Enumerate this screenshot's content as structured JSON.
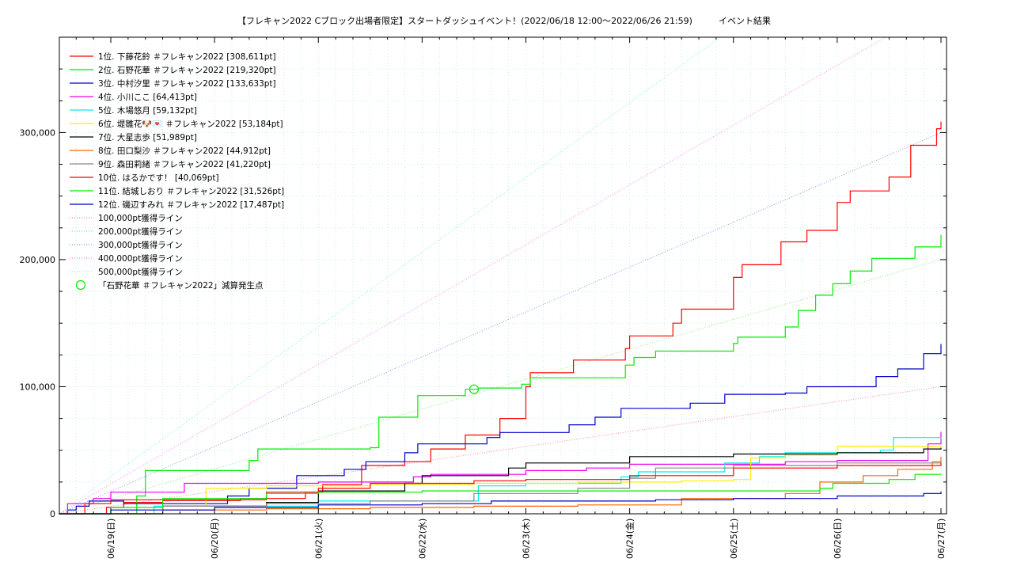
{
  "chart_data": {
    "type": "line",
    "title": "【フレキャン2022 Cブロック出場者限定】スタートダッシュイベント！(2022/06/18 12:00〜2022/06/26 21:59)　　　イベント結果",
    "xlabel": "",
    "ylabel": "",
    "x_range": [
      "2022/06/18 12:00",
      "2022/06/27 01:00"
    ],
    "ylim": [
      0,
      375000
    ],
    "grid": true,
    "legend_position": "top-left",
    "x_tick_labels": [
      "06/19(日)",
      "06/20(月)",
      "06/21(火)",
      "06/22(水)",
      "06/23(木)",
      "06/24(金)",
      "06/25(土)",
      "06/26(日)",
      "06/27(月)"
    ],
    "y_tick_labels": [
      "0",
      "100,000",
      "200,000",
      "300,000"
    ],
    "series": [
      {
        "name": "1位. 下藤花鈴 ＃フレキャン2022 [308,611pt]",
        "color": "#ff0000",
        "style": "solid",
        "points": [
          [
            "06/18 15:00",
            0
          ],
          [
            "06/18 23:00",
            5000
          ],
          [
            "06/19 03:00",
            9000
          ],
          [
            "06/19 12:00",
            10500
          ],
          [
            "06/20 06:00",
            12000
          ],
          [
            "06/20 21:00",
            17000
          ],
          [
            "06/21 01:00",
            23000
          ],
          [
            "06/21 10:00",
            38000
          ],
          [
            "06/21 20:00",
            41000
          ],
          [
            "06/22 02:00",
            51000
          ],
          [
            "06/22 10:00",
            62000
          ],
          [
            "06/22 18:00",
            75000
          ],
          [
            "06/23 00:00",
            100000
          ],
          [
            "06/23 01:00",
            111000
          ],
          [
            "06/23 11:00",
            121000
          ],
          [
            "06/23 23:00",
            130000
          ],
          [
            "06/24 00:00",
            140000
          ],
          [
            "06/24 10:00",
            150000
          ],
          [
            "06/24 12:00",
            161000
          ],
          [
            "06/25 00:00",
            186000
          ],
          [
            "06/25 02:00",
            196000
          ],
          [
            "06/25 11:00",
            214000
          ],
          [
            "06/25 17:00",
            223000
          ],
          [
            "06/26 00:00",
            245000
          ],
          [
            "06/26 03:00",
            254000
          ],
          [
            "06/26 12:00",
            265000
          ],
          [
            "06/26 17:00",
            290000
          ],
          [
            "06/26 23:00",
            303000
          ],
          [
            "06/27 00:00",
            308611
          ]
        ]
      },
      {
        "name": "2位. 石野花華 ＃フレキャン2022 [219,320pt]",
        "color": "#00ee00",
        "style": "solid",
        "points": [
          [
            "06/18 22:00",
            0
          ],
          [
            "06/19 06:00",
            14000
          ],
          [
            "06/19 08:00",
            34000
          ],
          [
            "06/20 08:00",
            42000
          ],
          [
            "06/20 10:00",
            51000
          ],
          [
            "06/21 12:00",
            52000
          ],
          [
            "06/21 14:00",
            76000
          ],
          [
            "06/21 23:00",
            93000
          ],
          [
            "06/22 10:00",
            98000
          ],
          [
            "06/22 13:00",
            99000
          ],
          [
            "06/22 23:00",
            102000
          ],
          [
            "06/23 01:00",
            107000
          ],
          [
            "06/23 23:00",
            117000
          ],
          [
            "06/24 01:00",
            123000
          ],
          [
            "06/24 06:00",
            128000
          ],
          [
            "06/25 00:00",
            134000
          ],
          [
            "06/25 01:00",
            139000
          ],
          [
            "06/25 12:00",
            147000
          ],
          [
            "06/25 15:00",
            160000
          ],
          [
            "06/25 19:00",
            172000
          ],
          [
            "06/25 23:00",
            181000
          ],
          [
            "06/26 03:00",
            191000
          ],
          [
            "06/26 08:00",
            201000
          ],
          [
            "06/26 18:00",
            210000
          ],
          [
            "06/27 00:00",
            219320
          ]
        ]
      },
      {
        "name": "3位. 中村汐里 ＃フレキャン2022 [133,633pt]",
        "color": "#0000cc",
        "style": "solid",
        "points": [
          [
            "06/18 12:30",
            0
          ],
          [
            "06/18 14:00",
            3000
          ],
          [
            "06/18 16:00",
            6000
          ],
          [
            "06/18 19:00",
            10000
          ],
          [
            "06/19 03:00",
            8000
          ],
          [
            "06/20 03:00",
            14000
          ],
          [
            "06/20 08:00",
            20000
          ],
          [
            "06/20 19:00",
            30000
          ],
          [
            "06/21 06:00",
            35000
          ],
          [
            "06/21 11:00",
            41000
          ],
          [
            "06/21 20:00",
            48000
          ],
          [
            "06/21 23:00",
            55000
          ],
          [
            "06/22 15:00",
            60000
          ],
          [
            "06/22 18:00",
            64000
          ],
          [
            "06/23 10:00",
            70000
          ],
          [
            "06/23 16:00",
            76000
          ],
          [
            "06/23 22:00",
            83000
          ],
          [
            "06/24 14:00",
            87000
          ],
          [
            "06/24 22:00",
            94000
          ],
          [
            "06/25 12:00",
            95000
          ],
          [
            "06/25 17:00",
            100000
          ],
          [
            "06/26 09:00",
            108000
          ],
          [
            "06/26 14:00",
            114000
          ],
          [
            "06/26 20:00",
            126000
          ],
          [
            "06/27 00:00",
            133633
          ]
        ]
      },
      {
        "name": "4位. 小川ここ [64,413pt]",
        "color": "#ee00ee",
        "style": "solid",
        "points": [
          [
            "06/18 12:00",
            0
          ],
          [
            "06/18 14:00",
            8000
          ],
          [
            "06/18 20:00",
            12000
          ],
          [
            "06/19 00:00",
            17000
          ],
          [
            "06/19 17:00",
            24000
          ],
          [
            "06/21 00:00",
            25000
          ],
          [
            "06/21 22:00",
            29000
          ],
          [
            "06/22 02:00",
            31000
          ],
          [
            "06/23 00:00",
            34000
          ],
          [
            "06/23 14:00",
            36000
          ],
          [
            "06/24 00:00",
            39000
          ],
          [
            "06/25 12:00",
            41000
          ],
          [
            "06/26 00:00",
            42000
          ],
          [
            "06/26 21:00",
            55000
          ],
          [
            "06/27 00:00",
            64413
          ]
        ]
      },
      {
        "name": "5位. 木場悠月 [59,132pt]",
        "color": "#00eeee",
        "style": "solid",
        "points": [
          [
            "06/18 12:00",
            0
          ],
          [
            "06/19 10:00",
            6000
          ],
          [
            "06/21 00:00",
            10000
          ],
          [
            "06/22 13:00",
            22000
          ],
          [
            "06/23 00:00",
            24000
          ],
          [
            "06/23 22:00",
            29000
          ],
          [
            "06/24 02:00",
            33000
          ],
          [
            "06/24 22:00",
            40000
          ],
          [
            "06/25 06:00",
            45000
          ],
          [
            "06/25 12:00",
            48000
          ],
          [
            "06/26 10:00",
            50000
          ],
          [
            "06/26 13:00",
            60000
          ],
          [
            "06/27 00:00",
            59132
          ]
        ]
      },
      {
        "name": "6位. 堤雛花🐶💌 ＃フレキャン2022 [53,184pt]",
        "color": "#ffee00",
        "style": "solid",
        "points": [
          [
            "06/18 12:00",
            0
          ],
          [
            "06/19 12:00",
            6000
          ],
          [
            "06/19 22:00",
            20000
          ],
          [
            "06/20 12:00",
            22000
          ],
          [
            "06/21 12:00",
            23000
          ],
          [
            "06/22 12:00",
            24000
          ],
          [
            "06/23 12:00",
            25000
          ],
          [
            "06/24 08:00",
            25000
          ],
          [
            "06/24 12:00",
            26000
          ],
          [
            "06/25 00:00",
            27000
          ],
          [
            "06/25 04:00",
            44000
          ],
          [
            "06/25 12:00",
            46000
          ],
          [
            "06/26 00:00",
            53000
          ],
          [
            "06/27 00:00",
            53184
          ]
        ]
      },
      {
        "name": "7位. 大星志歩 [51,989pt]",
        "color": "#000000",
        "style": "solid",
        "points": [
          [
            "06/18 12:00",
            0
          ],
          [
            "06/19 12:00",
            6000
          ],
          [
            "06/20 12:00",
            9000
          ],
          [
            "06/21 00:00",
            18000
          ],
          [
            "06/21 20:00",
            24000
          ],
          [
            "06/22 00:00",
            30000
          ],
          [
            "06/22 20:00",
            36000
          ],
          [
            "06/23 00:00",
            40000
          ],
          [
            "06/24 00:00",
            45000
          ],
          [
            "06/25 00:00",
            47000
          ],
          [
            "06/26 00:00",
            48000
          ],
          [
            "06/26 20:00",
            51000
          ],
          [
            "06/27 00:00",
            51989
          ]
        ]
      },
      {
        "name": "8位. 田口梨沙 ＃フレキャン2022 [44,912pt]",
        "color": "#ff6600",
        "style": "solid",
        "points": [
          [
            "06/18 12:00",
            0
          ],
          [
            "06/19 12:00",
            3000
          ],
          [
            "06/20 12:00",
            4000
          ],
          [
            "06/21 12:00",
            5000
          ],
          [
            "06/22 12:00",
            6000
          ],
          [
            "06/23 12:00",
            7000
          ],
          [
            "06/24 12:00",
            12000
          ],
          [
            "06/25 12:00",
            16000
          ],
          [
            "06/25 20:00",
            25000
          ],
          [
            "06/26 06:00",
            30000
          ],
          [
            "06/26 14:00",
            35000
          ],
          [
            "06/26 22:00",
            41000
          ],
          [
            "06/27 00:00",
            44912
          ]
        ]
      },
      {
        "name": "9位. 森田莉緒 ＃フレキャン2022 [41,220pt]",
        "color": "#888888",
        "style": "solid",
        "points": [
          [
            "06/18 12:00",
            0
          ],
          [
            "06/19 12:00",
            6000
          ],
          [
            "06/20 12:00",
            8000
          ],
          [
            "06/21 12:00",
            10000
          ],
          [
            "06/22 12:00",
            16000
          ],
          [
            "06/23 12:00",
            20000
          ],
          [
            "06/24 00:00",
            28000
          ],
          [
            "06/24 06:00",
            36000
          ],
          [
            "06/25 00:00",
            38000
          ],
          [
            "06/26 00:00",
            40000
          ],
          [
            "06/27 00:00",
            41220
          ]
        ]
      },
      {
        "name": "10位. はるかです！ [40,069pt]",
        "color": "#ff0000",
        "style": "solid",
        "points": [
          [
            "06/18 12:00",
            0
          ],
          [
            "06/18 18:00",
            8000
          ],
          [
            "06/19 00:00",
            11000
          ],
          [
            "06/20 12:00",
            17000
          ],
          [
            "06/21 00:00",
            20000
          ],
          [
            "06/21 12:00",
            24000
          ],
          [
            "06/22 12:00",
            26000
          ],
          [
            "06/23 00:00",
            27000
          ],
          [
            "06/24 00:00",
            30000
          ],
          [
            "06/25 00:00",
            36000
          ],
          [
            "06/26 00:00",
            38000
          ],
          [
            "06/27 00:00",
            40069
          ]
        ]
      },
      {
        "name": "11位. 結城しおり ＃フレキャン2022 [31,526pt]",
        "color": "#00ee00",
        "style": "solid",
        "points": [
          [
            "06/18 12:00",
            0
          ],
          [
            "06/19 00:00",
            5000
          ],
          [
            "06/19 12:00",
            12000
          ],
          [
            "06/20 12:00",
            16000
          ],
          [
            "06/21 00:00",
            17000
          ],
          [
            "06/22 00:00",
            18000
          ],
          [
            "06/23 00:00",
            18000
          ],
          [
            "06/24 00:00",
            18000
          ],
          [
            "06/25 00:00",
            18000
          ],
          [
            "06/25 20:00",
            20000
          ],
          [
            "06/25 23:00",
            24000
          ],
          [
            "06/26 12:00",
            27000
          ],
          [
            "06/26 18:00",
            31000
          ],
          [
            "06/27 00:00",
            31526
          ]
        ]
      },
      {
        "name": "12位. 磯辺すみれ ＃フレキャン2022 [17,487pt]",
        "color": "#0000cc",
        "style": "solid",
        "points": [
          [
            "06/18 12:00",
            0
          ],
          [
            "06/19 00:00",
            3000
          ],
          [
            "06/20 00:00",
            5000
          ],
          [
            "06/21 00:00",
            7000
          ],
          [
            "06/22 00:00",
            8000
          ],
          [
            "06/22 16:00",
            10000
          ],
          [
            "06/24 06:00",
            11000
          ],
          [
            "06/25 00:00",
            12000
          ],
          [
            "06/26 00:00",
            14000
          ],
          [
            "06/26 20:00",
            16000
          ],
          [
            "06/27 00:00",
            17487
          ]
        ]
      },
      {
        "name": "100,000pt獲得ライン",
        "color": "#ff88aa",
        "style": "dotted",
        "points": [
          [
            "06/18 12:00",
            0
          ],
          [
            "06/27 00:00",
            100000
          ]
        ]
      },
      {
        "name": "200,000pt獲得ライン",
        "color": "#88ee88",
        "style": "dotted",
        "points": [
          [
            "06/18 12:00",
            0
          ],
          [
            "06/27 00:00",
            200000
          ]
        ]
      },
      {
        "name": "300,000pt獲得ライン",
        "color": "#8899ee",
        "style": "dotted",
        "points": [
          [
            "06/18 12:00",
            0
          ],
          [
            "06/27 00:00",
            300000
          ]
        ]
      },
      {
        "name": "400,000pt獲得ライン",
        "color": "#ff88ff",
        "style": "dotted",
        "points": [
          [
            "06/18 12:00",
            0
          ],
          [
            "06/27 00:00",
            400000
          ]
        ]
      },
      {
        "name": "500,000pt獲得ライン",
        "color": "#88eeee",
        "style": "dotted",
        "points": [
          [
            "06/18 12:00",
            0
          ],
          [
            "06/27 00:00",
            500000
          ]
        ]
      }
    ],
    "markers": [
      {
        "name": "「石野花華 ＃フレキャン2022」減算発生点",
        "color": "#00ee00",
        "shape": "circle",
        "points": [
          [
            "06/22 12:00",
            98000
          ]
        ]
      }
    ]
  }
}
